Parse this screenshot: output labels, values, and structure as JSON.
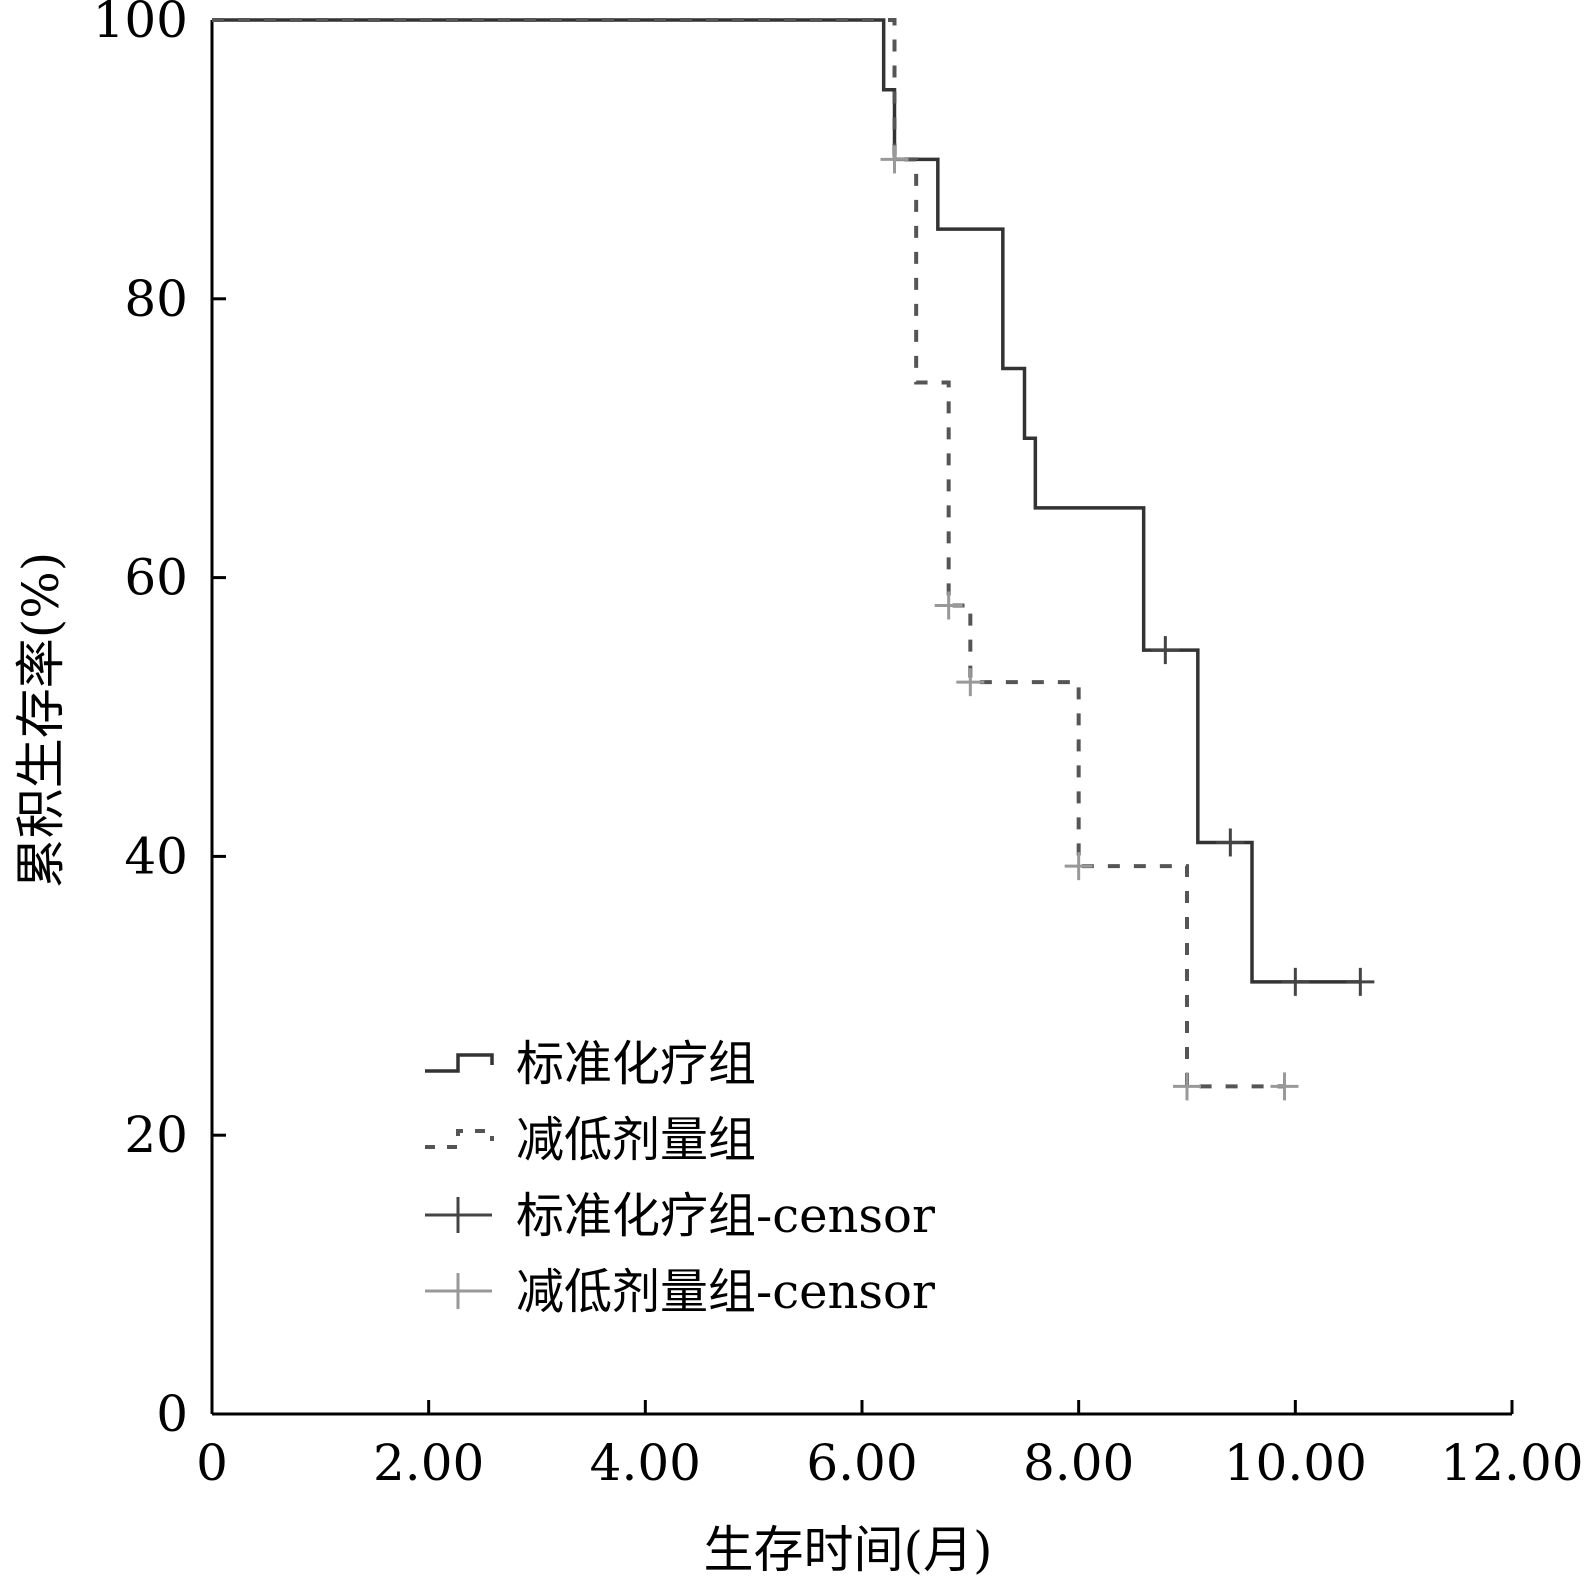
{
  "chart_data": {
    "type": "line",
    "xlabel": "生存时间(月)",
    "ylabel": "累积生存率(%)",
    "xlim": [
      0,
      12
    ],
    "ylim": [
      0,
      100
    ],
    "xticks": [
      0,
      2,
      4,
      6,
      8,
      10,
      12
    ],
    "xtick_labels": [
      "0",
      "2.00",
      "4.00",
      "6.00",
      "8.00",
      "10.00",
      "12.00"
    ],
    "yticks": [
      0,
      20,
      40,
      60,
      80,
      100
    ],
    "ytick_labels": [
      "0",
      "20",
      "40",
      "60",
      "80",
      "100"
    ],
    "grid": false,
    "legend_position": "bottom-left",
    "series": [
      {
        "name": "标准化疗组",
        "style": "solid",
        "color": "#333333",
        "x": [
          0,
          6.2,
          6.3,
          6.7,
          7.3,
          7.5,
          7.6,
          8.6,
          9.1,
          9.6,
          10.6
        ],
        "y": [
          100,
          95,
          90,
          85,
          75,
          70,
          65,
          54.8,
          41,
          31,
          31
        ]
      },
      {
        "name": "减低剂量组",
        "style": "dashed",
        "color": "#555555",
        "x": [
          0,
          6.3,
          6.5,
          6.8,
          7.0,
          8.0,
          9.0,
          9.9
        ],
        "y": [
          100,
          90,
          74,
          58,
          52.5,
          39.3,
          23.5,
          23.5
        ]
      }
    ],
    "censor_series": [
      {
        "name": "标准化疗组-censor",
        "color": "#444444",
        "x": [
          8.8,
          9.4,
          10.0,
          10.6
        ],
        "y": [
          54.8,
          41,
          31,
          31
        ]
      },
      {
        "name": "减低剂量组-censor",
        "color": "#999999",
        "x": [
          6.3,
          6.8,
          7.0,
          8.0,
          9.0,
          9.9
        ],
        "y": [
          90,
          58,
          52.5,
          39.3,
          23.5,
          23.5
        ]
      }
    ]
  }
}
